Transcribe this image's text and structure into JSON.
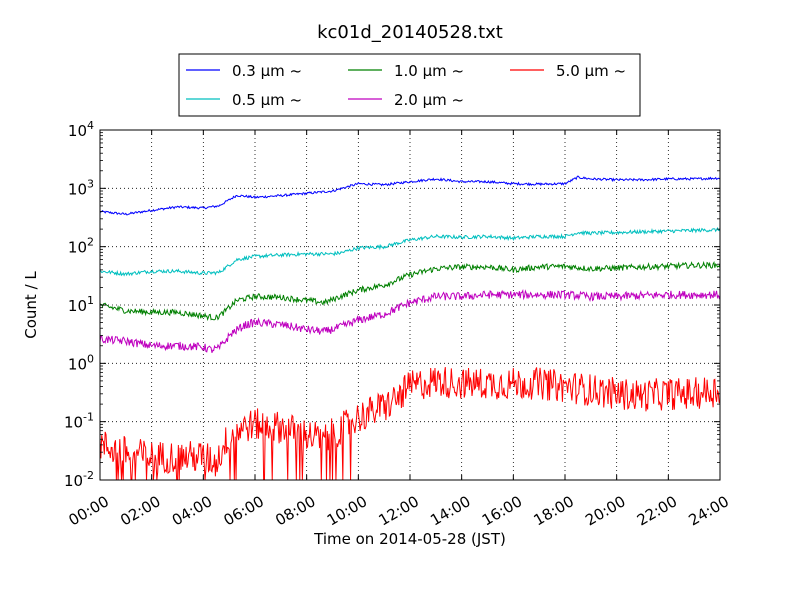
{
  "chart_data": {
    "type": "line",
    "title": "kc01d_20140528.txt",
    "xlabel": "Time on 2014-05-28 (JST)",
    "ylabel": "Count / L",
    "y_scale": "log",
    "ylim": [
      0.01,
      10000
    ],
    "xlim": [
      "00:00",
      "24:00"
    ],
    "x_tick_labels": [
      "00:00",
      "02:00",
      "04:00",
      "06:00",
      "08:00",
      "10:00",
      "12:00",
      "14:00",
      "16:00",
      "18:00",
      "20:00",
      "22:00",
      "24:00"
    ],
    "y_tick_labels": [
      {
        "base": "10",
        "exp": "-2"
      },
      {
        "base": "10",
        "exp": "-1"
      },
      {
        "base": "10",
        "exp": "0"
      },
      {
        "base": "10",
        "exp": "1"
      },
      {
        "base": "10",
        "exp": "2"
      },
      {
        "base": "10",
        "exp": "3"
      },
      {
        "base": "10",
        "exp": "4"
      }
    ],
    "grid": true,
    "legend_placement": "top",
    "series": [
      {
        "name": "0.3 μm ~",
        "color": "#0000ff",
        "noise": 0.02,
        "points": [
          [
            0,
            400
          ],
          [
            1,
            360
          ],
          [
            2,
            420
          ],
          [
            3,
            480
          ],
          [
            4,
            460
          ],
          [
            4.6,
            500
          ],
          [
            5.3,
            760
          ],
          [
            6,
            700
          ],
          [
            7,
            750
          ],
          [
            8,
            820
          ],
          [
            9,
            900
          ],
          [
            10,
            1200
          ],
          [
            11,
            1150
          ],
          [
            12,
            1300
          ],
          [
            13,
            1450
          ],
          [
            14,
            1300
          ],
          [
            15,
            1300
          ],
          [
            16,
            1200
          ],
          [
            17,
            1180
          ],
          [
            18,
            1200
          ],
          [
            18.5,
            1550
          ],
          [
            19,
            1450
          ],
          [
            20,
            1400
          ],
          [
            21,
            1400
          ],
          [
            22,
            1450
          ],
          [
            23,
            1450
          ],
          [
            24,
            1500
          ]
        ]
      },
      {
        "name": "0.5 μm ~",
        "color": "#00bfbf",
        "noise": 0.03,
        "points": [
          [
            0,
            38
          ],
          [
            1,
            34
          ],
          [
            2,
            38
          ],
          [
            3,
            38
          ],
          [
            4,
            35
          ],
          [
            4.6,
            36
          ],
          [
            5.3,
            60
          ],
          [
            6,
            68
          ],
          [
            7,
            72
          ],
          [
            8,
            75
          ],
          [
            9,
            75
          ],
          [
            9.3,
            78
          ],
          [
            10,
            95
          ],
          [
            11,
            100
          ],
          [
            12,
            130
          ],
          [
            13,
            150
          ],
          [
            14,
            145
          ],
          [
            15,
            150
          ],
          [
            16,
            140
          ],
          [
            17,
            150
          ],
          [
            18,
            150
          ],
          [
            18.5,
            175
          ],
          [
            19,
            170
          ],
          [
            20,
            175
          ],
          [
            21,
            180
          ],
          [
            22,
            185
          ],
          [
            23,
            190
          ],
          [
            24,
            195
          ]
        ]
      },
      {
        "name": "1.0 μm ~",
        "color": "#008000",
        "noise": 0.05,
        "points": [
          [
            0,
            10
          ],
          [
            1,
            8
          ],
          [
            2,
            7.5
          ],
          [
            3,
            7.5
          ],
          [
            4,
            6.5
          ],
          [
            4.5,
            6
          ],
          [
            4.8,
            7.5
          ],
          [
            5.3,
            12
          ],
          [
            6,
            14
          ],
          [
            7,
            13.5
          ],
          [
            8,
            12
          ],
          [
            8.7,
            11
          ],
          [
            9.3,
            14
          ],
          [
            10,
            18
          ],
          [
            11,
            22
          ],
          [
            12,
            33
          ],
          [
            13,
            42
          ],
          [
            14,
            45
          ],
          [
            15,
            45
          ],
          [
            16,
            40
          ],
          [
            17,
            45
          ],
          [
            18,
            46
          ],
          [
            19,
            42
          ],
          [
            20,
            43
          ],
          [
            21,
            45
          ],
          [
            22,
            46
          ],
          [
            23,
            48
          ],
          [
            24,
            48
          ]
        ]
      },
      {
        "name": "2.0 μm ~",
        "color": "#bf00bf",
        "noise": 0.07,
        "points": [
          [
            0,
            2.6
          ],
          [
            1,
            2.4
          ],
          [
            2,
            2.0
          ],
          [
            3,
            2.0
          ],
          [
            4,
            1.9
          ],
          [
            4.3,
            1.7
          ],
          [
            4.6,
            1.8
          ],
          [
            5.1,
            3.3
          ],
          [
            5.6,
            4.5
          ],
          [
            6,
            5.0
          ],
          [
            7,
            4.6
          ],
          [
            8,
            3.8
          ],
          [
            8.7,
            3.5
          ],
          [
            9.3,
            4.2
          ],
          [
            10,
            5.5
          ],
          [
            11,
            7
          ],
          [
            12,
            11
          ],
          [
            13,
            14
          ],
          [
            14,
            14
          ],
          [
            15,
            15
          ],
          [
            16,
            15
          ],
          [
            17,
            15
          ],
          [
            18,
            15
          ],
          [
            19,
            14
          ],
          [
            20,
            14
          ],
          [
            21,
            14.5
          ],
          [
            22,
            15
          ],
          [
            23,
            15
          ],
          [
            24,
            15
          ]
        ]
      },
      {
        "name": "5.0 μm ~",
        "color": "#ff0000",
        "noise": 0.28,
        "points": [
          [
            0,
            0.04
          ],
          [
            1,
            0.03
          ],
          [
            2,
            0.025
          ],
          [
            3,
            0.025
          ],
          [
            4,
            0.025
          ],
          [
            4.5,
            0.02
          ],
          [
            5,
            0.06
          ],
          [
            5.5,
            0.08
          ],
          [
            6,
            0.09
          ],
          [
            7,
            0.08
          ],
          [
            8,
            0.06
          ],
          [
            8.7,
            0.05
          ],
          [
            9.2,
            0.07
          ],
          [
            10,
            0.12
          ],
          [
            11,
            0.18
          ],
          [
            11.5,
            0.25
          ],
          [
            12,
            0.4
          ],
          [
            13,
            0.5
          ],
          [
            14,
            0.45
          ],
          [
            15,
            0.45
          ],
          [
            16,
            0.45
          ],
          [
            17,
            0.45
          ],
          [
            18,
            0.4
          ],
          [
            19,
            0.35
          ],
          [
            20,
            0.3
          ],
          [
            21,
            0.28
          ],
          [
            22,
            0.3
          ],
          [
            23,
            0.3
          ],
          [
            24,
            0.35
          ]
        ]
      }
    ]
  }
}
